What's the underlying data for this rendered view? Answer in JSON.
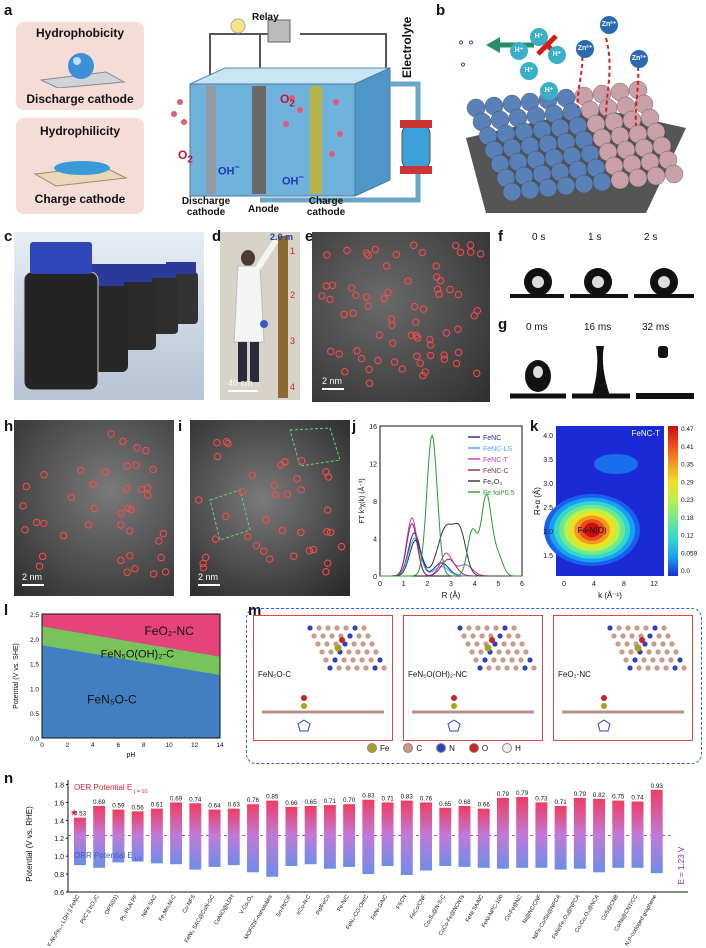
{
  "panel_labels": [
    "a",
    "b",
    "c",
    "d",
    "e",
    "f",
    "g",
    "h",
    "i",
    "j",
    "k",
    "l",
    "m",
    "n"
  ],
  "panel_a": {
    "box1_title": "Hydrophobicity",
    "box1_caption": "Discharge cathode",
    "box2_title": "Hydrophilicity",
    "box2_caption": "Charge cathode",
    "relay": "Relay",
    "o2_left": "O",
    "o2_tank": "O",
    "oh_left": "OH",
    "oh_right": "OH",
    "electrolyte": "Electrolyte",
    "bottom_discharge": "Discharge cathode",
    "bottom_anode": "Anode",
    "bottom_charge": "Charge cathode"
  },
  "panel_b": {
    "ions": [
      "H⁺",
      "H⁺",
      "H⁺",
      "H⁺",
      "H⁺",
      "Zn²⁺",
      "Zn²⁺",
      "Zn²⁺"
    ]
  },
  "panel_d": {
    "scale_top": "2.0 m",
    "marks": [
      "1",
      "2",
      "3",
      "4"
    ],
    "scalebar": "40 cm"
  },
  "panel_e": {
    "scalebar": "2 nm"
  },
  "panel_f": {
    "times": [
      "0 s",
      "1 s",
      "2 s"
    ]
  },
  "panel_g": {
    "times": [
      "0 ms",
      "16 ms",
      "32 ms"
    ]
  },
  "panel_h": {
    "scalebar": "2 nm"
  },
  "panel_i": {
    "scalebar": "2 nm"
  },
  "panel_j": {
    "ylabel": "FT k³χ(k) (Å⁻³)",
    "xlabel": "R (Å)",
    "xticks": [
      "0",
      "1",
      "2",
      "3",
      "4",
      "5",
      "6"
    ],
    "yticks": [
      "0",
      "4",
      "8",
      "12",
      "16"
    ],
    "legend": [
      {
        "name": "FeNC",
        "color": "#1f2a8a"
      },
      {
        "name": "FeNC-LS",
        "color": "#4aa3ff"
      },
      {
        "name": "FeNC-T",
        "color": "#d23aa3"
      },
      {
        "name": "FeNC-C",
        "color": "#8a2a6a"
      },
      {
        "name": "Fe₂O₃",
        "color": "#333333"
      },
      {
        "name": "Fe foil*0.5",
        "color": "#2a9a2a"
      }
    ]
  },
  "panel_k": {
    "title": "FeNC-T",
    "ylabel": "R+α (Å)",
    "xlabel": "k (Å⁻¹)",
    "yticks": [
      "1.5",
      "2.0",
      "2.5",
      "3.0",
      "3.5",
      "4.0"
    ],
    "xticks": [
      "0",
      "4",
      "8",
      "12"
    ],
    "peak_label": "Fe-N(O)",
    "colorbar": [
      "0.47",
      "0.41",
      "0.35",
      "0.29",
      "0.23",
      "0.18",
      "0.12",
      "0.059",
      "0.0"
    ]
  },
  "panel_l": {
    "ylabel": "Potential (V vs. SHE)",
    "xlabel": "pH",
    "yticks": [
      "0.0",
      "0.5",
      "1.0",
      "1.5",
      "2.0",
      "2.5"
    ],
    "xticks": [
      "0",
      "2",
      "4",
      "6",
      "8",
      "10",
      "12",
      "14"
    ],
    "regions": [
      "FeO₂-NC",
      "FeN₅O(OH)₂-C",
      "FeN₅O-C"
    ]
  },
  "panel_m": {
    "structures": [
      "FeN₅O-C",
      "FeN₅O(OH)₂-NC",
      "FeO₂-NC"
    ],
    "legend": [
      "Fe",
      "C",
      "N",
      "O",
      "H"
    ],
    "legend_colors": [
      "#a8a020",
      "#c89a8a",
      "#3040c0",
      "#d02020",
      "#f0f0f0"
    ]
  },
  "panel_n": {
    "ylabel": "Potential (V vs. RHE)",
    "oer_label": "OER Potential E",
    "oer_sub": "j = 10",
    "orr_label": "ORR Potential E",
    "orr_sub": "1/2",
    "ref_line": "E = 1.23 V",
    "yticks": [
      "0.6",
      "0.8",
      "1.0",
      "1.2",
      "1.4",
      "1.6",
      "1.8"
    ],
    "star": "★",
    "catalysts": [
      "F-Ni₃Fe₀.₅ LDH || FeNC",
      "Pt/C || IrO₂/C",
      "OPS(01)",
      "Pt₁-Pt₃N PF",
      "NiFe SAC",
      "Fe₁Mn₁Ni-C",
      "Co-NFS",
      "FeNi₃ SAC@CoN-GC",
      "CoNiO@LDH",
      "V-Co₃O₄",
      "MOF/ZIF-nanotubes",
      "Sn-Pt/C/F",
      "IrCo-N-C",
      "Pd/FeCo",
      "Fe-N/C",
      "FeN₄-CO-OH/C",
      "FeNi-G/NC",
      "FSCN",
      "FeCo/CNF",
      "Co₉S₈@N-S-C",
      "CoCo-Fe@NCNTs",
      "FeNi SA/NC",
      "FeNi-NPC-100",
      "Co-Fe@NC",
      "Ni@NC/CNF",
      "NiFe-Co/Se@NPCA",
      "FeNi/Fe₂O₃@NPCA",
      "Co₂Co₂O₄@NCA",
      "CoS@CNB",
      "Co/Ni@CNT/CC",
      "N,P-codoped graphene"
    ],
    "gaps": [
      "0.53",
      "0.69",
      "0.59",
      "0.56",
      "0.61",
      "0.69",
      "0.74",
      "0.64",
      "0.63",
      "0.76",
      "0.85",
      "0.66",
      "0.65",
      "0.71",
      "0.70",
      "0.83",
      "0.71",
      "0.83",
      "0.76",
      "0.65",
      "0.68",
      "0.66",
      "0.79",
      "0.79",
      "0.73",
      "0.71",
      "0.79",
      "0.82",
      "0.75",
      "0.74",
      "0.93"
    ],
    "chart_data": {
      "type": "bar",
      "categories_ref": "panel_n.catalysts",
      "series": [
        {
          "name": "OER Potential Ej=10",
          "values": [
            1.43,
            1.56,
            1.52,
            1.5,
            1.53,
            1.6,
            1.59,
            1.52,
            1.53,
            1.58,
            1.62,
            1.55,
            1.56,
            1.57,
            1.58,
            1.63,
            1.6,
            1.62,
            1.6,
            1.54,
            1.56,
            1.53,
            1.65,
            1.66,
            1.6,
            1.56,
            1.65,
            1.64,
            1.62,
            1.61,
            1.74
          ]
        },
        {
          "name": "ORR Potential E1/2",
          "values": [
            0.9,
            0.87,
            0.93,
            0.94,
            0.92,
            0.91,
            0.85,
            0.88,
            0.9,
            0.82,
            0.77,
            0.89,
            0.91,
            0.86,
            0.88,
            0.8,
            0.89,
            0.79,
            0.84,
            0.89,
            0.88,
            0.87,
            0.86,
            0.87,
            0.87,
            0.85,
            0.86,
            0.82,
            0.87,
            0.87,
            0.81
          ]
        }
      ],
      "ylim": [
        0.6,
        1.85
      ],
      "reference_line": 1.23
    }
  }
}
